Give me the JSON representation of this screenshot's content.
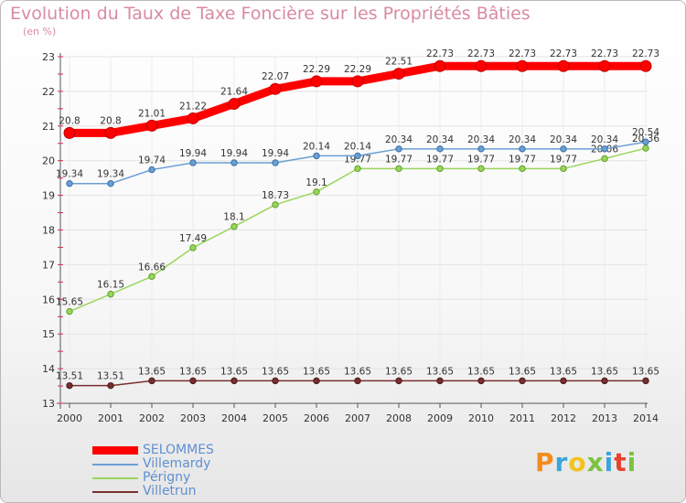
{
  "title": "Evolution du Taux de Taxe Foncière sur les Propriétés Bâties",
  "unit_label": "(en %)",
  "logo": "Proxiti",
  "chart_data": {
    "type": "line",
    "x": [
      "2000",
      "2001",
      "2002",
      "2003",
      "2004",
      "2005",
      "2006",
      "2007",
      "2008",
      "2009",
      "2010",
      "2011",
      "2012",
      "2013",
      "2014"
    ],
    "ylim": [
      13,
      23
    ],
    "yticks": [
      13,
      14,
      15,
      16,
      17,
      18,
      19,
      20,
      21,
      22,
      23
    ],
    "grid": true,
    "legend_position": "bottom-left",
    "series": [
      {
        "name": "SELOMMES",
        "color": "#ff0000",
        "values": [
          20.8,
          20.8,
          21.01,
          21.22,
          21.64,
          22.07,
          22.29,
          22.29,
          22.51,
          22.73,
          22.73,
          22.73,
          22.73,
          22.73,
          22.73
        ],
        "labels": [
          "20.8",
          "20.8",
          "21.01",
          "21.22",
          "21.64",
          "22.07",
          "22.29",
          "22.29",
          "22.51",
          "22.73",
          "22.73",
          "22.73",
          "22.73",
          "22.73",
          "22.73"
        ]
      },
      {
        "name": "Villemardy",
        "color": "#6a9fd4",
        "values": [
          19.34,
          19.34,
          19.74,
          19.94,
          19.94,
          19.94,
          20.14,
          20.14,
          20.34,
          20.34,
          20.34,
          20.34,
          20.34,
          20.34,
          20.54
        ],
        "labels": [
          "19.34",
          "19.34",
          "19.74",
          "19.94",
          "19.94",
          "19.94",
          "20.14",
          "20.14",
          "20.34",
          "20.34",
          "20.34",
          "20.34",
          "20.34",
          "20.34",
          "20.54"
        ]
      },
      {
        "name": "Périgny",
        "color": "#99d65a",
        "values": [
          15.65,
          16.15,
          16.66,
          17.49,
          18.1,
          18.73,
          19.1,
          19.77,
          19.77,
          19.77,
          19.77,
          19.77,
          19.77,
          20.06,
          20.36
        ],
        "labels": [
          "15.65",
          "16.15",
          "16.66",
          "17.49",
          "18.1",
          "18.73",
          "19.1",
          "19.77",
          "19.77",
          "19.77",
          "19.77",
          "19.77",
          "19.77",
          "20.06",
          "20.36"
        ]
      },
      {
        "name": "Villetrun",
        "color": "#7a2e2e",
        "values": [
          13.51,
          13.51,
          13.65,
          13.65,
          13.65,
          13.65,
          13.65,
          13.65,
          13.65,
          13.65,
          13.65,
          13.65,
          13.65,
          13.65,
          13.65
        ],
        "labels": [
          "13.51",
          "13.51",
          "13.65",
          "13.65",
          "13.65",
          "13.65",
          "13.65",
          "13.65",
          "13.65",
          "13.65",
          "13.65",
          "13.65",
          "13.65",
          "13.65",
          "13.65"
        ]
      }
    ]
  }
}
